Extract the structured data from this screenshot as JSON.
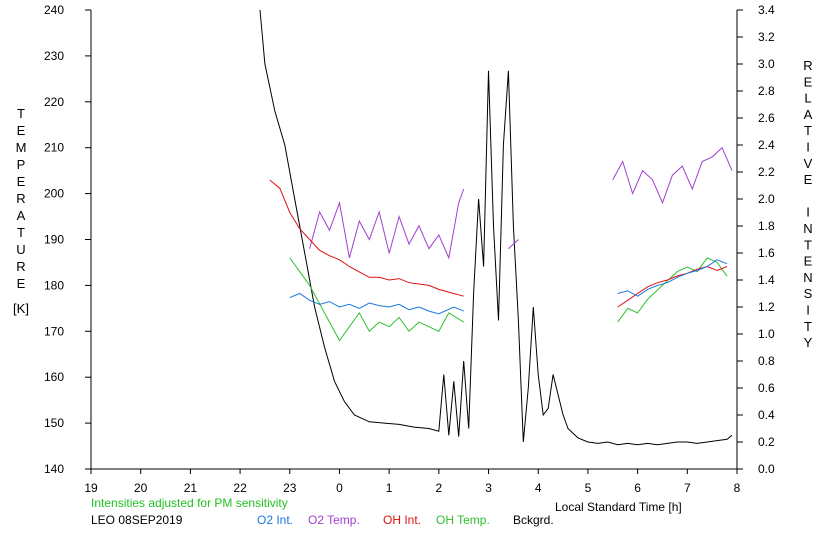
{
  "chart_data": {
    "type": "line",
    "title": "",
    "xlabel": "Local Standard Time [h]",
    "ylabel_left": "TEMPERATURE",
    "ylabel_left_unit": "[K]",
    "ylabel_right": "RELATIVE INTENSITY",
    "x_ticks": [
      "19",
      "20",
      "21",
      "22",
      "23",
      "0",
      "1",
      "2",
      "3",
      "4",
      "5",
      "6",
      "7",
      "8"
    ],
    "y_left_ticks": [
      140,
      150,
      160,
      170,
      180,
      190,
      200,
      210,
      220,
      230,
      240
    ],
    "y_right_ticks": [
      "0.0",
      "0.2",
      "0.4",
      "0.6",
      "0.8",
      "1.0",
      "1.2",
      "1.4",
      "1.6",
      "1.8",
      "2.0",
      "2.2",
      "2.4",
      "2.6",
      "2.8",
      "3.0",
      "3.2",
      "3.4"
    ],
    "xlim": [
      19,
      32
    ],
    "ylim_left": [
      140,
      240
    ],
    "ylim_right": [
      0,
      3.4
    ],
    "grid": false,
    "note": "Intensities adjusted for PM sensitivity",
    "station_label": "LEO 08SEP2019",
    "series": [
      {
        "name": "O2 Int.",
        "axis": "right",
        "color": "#1a78e0",
        "points": [
          [
            23.0,
            1.27
          ],
          [
            23.2,
            1.3
          ],
          [
            23.4,
            1.25
          ],
          [
            23.6,
            1.22
          ],
          [
            23.8,
            1.24
          ],
          [
            24.0,
            1.2
          ],
          [
            24.2,
            1.22
          ],
          [
            24.4,
            1.19
          ],
          [
            24.6,
            1.23
          ],
          [
            24.8,
            1.21
          ],
          [
            25.0,
            1.2
          ],
          [
            25.2,
            1.22
          ],
          [
            25.4,
            1.18
          ],
          [
            25.6,
            1.2
          ],
          [
            25.8,
            1.17
          ],
          [
            26.0,
            1.15
          ],
          [
            26.3,
            1.2
          ],
          [
            26.5,
            1.17
          ],
          [
            29.6,
            1.3
          ],
          [
            29.8,
            1.32
          ],
          [
            30.0,
            1.28
          ],
          [
            30.2,
            1.33
          ],
          [
            30.4,
            1.36
          ],
          [
            30.6,
            1.38
          ],
          [
            30.8,
            1.42
          ],
          [
            31.0,
            1.45
          ],
          [
            31.2,
            1.47
          ],
          [
            31.4,
            1.5
          ],
          [
            31.6,
            1.55
          ],
          [
            31.8,
            1.52
          ]
        ]
      },
      {
        "name": "O2 Temp.",
        "axis": "left",
        "color": "#a040d0",
        "points": [
          [
            23.4,
            188
          ],
          [
            23.6,
            196
          ],
          [
            23.8,
            192
          ],
          [
            24.0,
            198
          ],
          [
            24.2,
            186
          ],
          [
            24.4,
            194
          ],
          [
            24.6,
            190
          ],
          [
            24.8,
            196
          ],
          [
            25.0,
            187
          ],
          [
            25.2,
            195
          ],
          [
            25.4,
            189
          ],
          [
            25.6,
            193
          ],
          [
            25.8,
            188
          ],
          [
            26.0,
            191
          ],
          [
            26.2,
            186
          ],
          [
            26.4,
            198
          ],
          [
            26.5,
            201
          ],
          [
            27.4,
            188
          ],
          [
            27.6,
            190
          ],
          [
            29.5,
            203
          ],
          [
            29.7,
            207
          ],
          [
            29.9,
            200
          ],
          [
            30.1,
            205
          ],
          [
            30.3,
            203
          ],
          [
            30.5,
            198
          ],
          [
            30.7,
            204
          ],
          [
            30.9,
            206
          ],
          [
            31.1,
            201
          ],
          [
            31.3,
            207
          ],
          [
            31.5,
            208
          ],
          [
            31.7,
            210
          ],
          [
            31.9,
            205
          ]
        ]
      },
      {
        "name": "OH Int.",
        "axis": "right",
        "color": "#e01010",
        "points": [
          [
            22.6,
            2.14
          ],
          [
            22.8,
            2.08
          ],
          [
            23.0,
            1.9
          ],
          [
            23.2,
            1.78
          ],
          [
            23.4,
            1.7
          ],
          [
            23.6,
            1.62
          ],
          [
            23.8,
            1.58
          ],
          [
            24.0,
            1.55
          ],
          [
            24.2,
            1.5
          ],
          [
            24.4,
            1.46
          ],
          [
            24.6,
            1.42
          ],
          [
            24.8,
            1.42
          ],
          [
            25.0,
            1.4
          ],
          [
            25.2,
            1.41
          ],
          [
            25.4,
            1.38
          ],
          [
            25.6,
            1.37
          ],
          [
            25.8,
            1.36
          ],
          [
            26.0,
            1.33
          ],
          [
            26.3,
            1.3
          ],
          [
            26.5,
            1.28
          ],
          [
            29.6,
            1.2
          ],
          [
            29.8,
            1.25
          ],
          [
            30.0,
            1.3
          ],
          [
            30.2,
            1.35
          ],
          [
            30.4,
            1.38
          ],
          [
            30.6,
            1.4
          ],
          [
            30.8,
            1.43
          ],
          [
            31.0,
            1.45
          ],
          [
            31.2,
            1.48
          ],
          [
            31.4,
            1.5
          ],
          [
            31.6,
            1.47
          ],
          [
            31.8,
            1.5
          ]
        ]
      },
      {
        "name": "OH Temp.",
        "axis": "left",
        "color": "#30c030",
        "points": [
          [
            23.0,
            186
          ],
          [
            23.2,
            183
          ],
          [
            23.4,
            180
          ],
          [
            23.6,
            176
          ],
          [
            23.8,
            172
          ],
          [
            24.0,
            168
          ],
          [
            24.2,
            171
          ],
          [
            24.4,
            174
          ],
          [
            24.6,
            170
          ],
          [
            24.8,
            172
          ],
          [
            25.0,
            171
          ],
          [
            25.2,
            173
          ],
          [
            25.4,
            170
          ],
          [
            25.6,
            172
          ],
          [
            25.8,
            171
          ],
          [
            26.0,
            170
          ],
          [
            26.2,
            174
          ],
          [
            26.5,
            172
          ],
          [
            29.6,
            172
          ],
          [
            29.8,
            175
          ],
          [
            30.0,
            174
          ],
          [
            30.2,
            177
          ],
          [
            30.4,
            179
          ],
          [
            30.6,
            181
          ],
          [
            30.8,
            183
          ],
          [
            31.0,
            184
          ],
          [
            31.2,
            183
          ],
          [
            31.4,
            186
          ],
          [
            31.6,
            185
          ],
          [
            31.8,
            182
          ]
        ]
      },
      {
        "name": "Bckgrd.",
        "axis": "right",
        "color": "#000000",
        "points": [
          [
            22.4,
            3.4
          ],
          [
            22.5,
            3.0
          ],
          [
            22.7,
            2.65
          ],
          [
            22.9,
            2.4
          ],
          [
            23.1,
            2.0
          ],
          [
            23.3,
            1.6
          ],
          [
            23.5,
            1.2
          ],
          [
            23.7,
            0.9
          ],
          [
            23.9,
            0.65
          ],
          [
            24.1,
            0.5
          ],
          [
            24.3,
            0.4
          ],
          [
            24.6,
            0.35
          ],
          [
            24.9,
            0.34
          ],
          [
            25.2,
            0.33
          ],
          [
            25.5,
            0.31
          ],
          [
            25.8,
            0.3
          ],
          [
            26.0,
            0.28
          ],
          [
            26.1,
            0.7
          ],
          [
            26.2,
            0.25
          ],
          [
            26.3,
            0.65
          ],
          [
            26.4,
            0.24
          ],
          [
            26.5,
            0.8
          ],
          [
            26.6,
            0.3
          ],
          [
            26.7,
            1.3
          ],
          [
            26.8,
            2.0
          ],
          [
            26.9,
            1.5
          ],
          [
            27.0,
            2.95
          ],
          [
            27.1,
            1.8
          ],
          [
            27.2,
            1.1
          ],
          [
            27.3,
            2.4
          ],
          [
            27.4,
            2.95
          ],
          [
            27.5,
            1.8
          ],
          [
            27.6,
            1.1
          ],
          [
            27.7,
            0.2
          ],
          [
            27.8,
            0.6
          ],
          [
            27.9,
            1.2
          ],
          [
            28.0,
            0.7
          ],
          [
            28.1,
            0.4
          ],
          [
            28.2,
            0.45
          ],
          [
            28.3,
            0.7
          ],
          [
            28.4,
            0.55
          ],
          [
            28.5,
            0.4
          ],
          [
            28.6,
            0.3
          ],
          [
            28.8,
            0.23
          ],
          [
            29.0,
            0.2
          ],
          [
            29.2,
            0.19
          ],
          [
            29.4,
            0.2
          ],
          [
            29.6,
            0.18
          ],
          [
            29.8,
            0.19
          ],
          [
            30.0,
            0.18
          ],
          [
            30.2,
            0.19
          ],
          [
            30.4,
            0.18
          ],
          [
            30.6,
            0.19
          ],
          [
            30.8,
            0.2
          ],
          [
            31.0,
            0.2
          ],
          [
            31.2,
            0.19
          ],
          [
            31.4,
            0.2
          ],
          [
            31.6,
            0.21
          ],
          [
            31.8,
            0.22
          ],
          [
            31.9,
            0.25
          ]
        ]
      }
    ]
  }
}
